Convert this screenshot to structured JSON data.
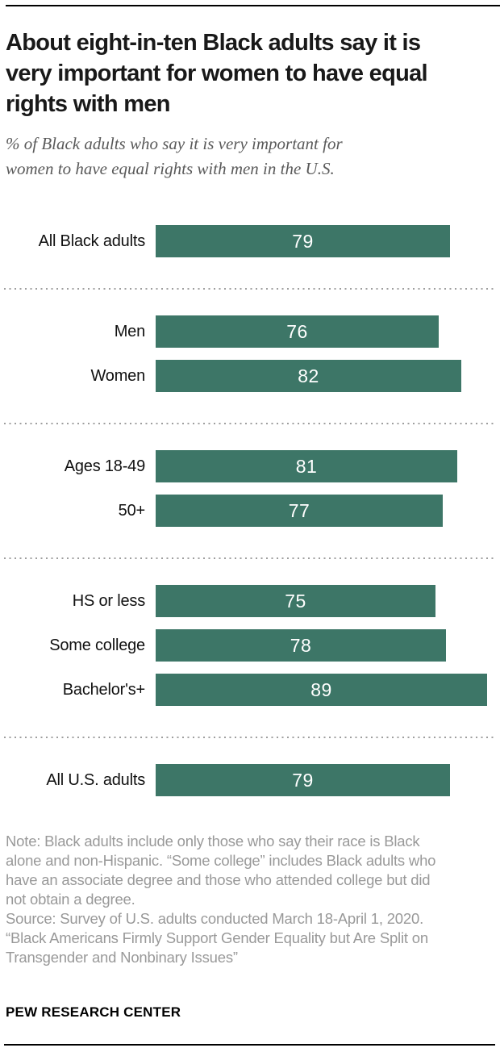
{
  "header": {
    "title_lines": [
      "About eight-in-ten Black adults say it is",
      "very important for women to have equal",
      "rights with men"
    ],
    "subtitle_lines": [
      "% of Black adults who say it is very important for",
      "women to have equal rights with men in the U.S."
    ]
  },
  "chart_data": {
    "type": "bar",
    "orientation": "horizontal",
    "title": "About eight-in-ten Black adults say it is very important for women to have equal rights with men",
    "subtitle": "% of Black adults who say it is very important for women to have equal rights with men in the U.S.",
    "unit": "%",
    "xlim": [
      0,
      92
    ],
    "bar_color": "#3d7667",
    "value_label_color": "#ffffff",
    "grid": false,
    "legend": false,
    "categories": [
      "All Black adults",
      "Men",
      "Women",
      "Ages 18-49",
      "50+",
      "HS or less",
      "Some college",
      "Bachelor's+",
      "All U.S. adults"
    ],
    "values": [
      79,
      76,
      82,
      81,
      77,
      75,
      78,
      89,
      79
    ],
    "groups": [
      {
        "rows": [
          {
            "label": "All Black adults",
            "value": 79
          }
        ]
      },
      {
        "rows": [
          {
            "label": "Men",
            "value": 76
          },
          {
            "label": "Women",
            "value": 82
          }
        ]
      },
      {
        "rows": [
          {
            "label": "Ages 18-49",
            "value": 81
          },
          {
            "label": "50+",
            "value": 77
          }
        ]
      },
      {
        "rows": [
          {
            "label": "HS or less",
            "value": 75
          },
          {
            "label": "Some college",
            "value": 78
          },
          {
            "label": "Bachelor's+",
            "value": 89
          }
        ]
      },
      {
        "rows": [
          {
            "label": "All U.S. adults",
            "value": 79
          }
        ]
      }
    ]
  },
  "footer": {
    "note_lines": [
      "Note: Black adults include only those who say their race is Black",
      "alone and non-Hispanic. “Some college” includes Black adults who",
      "have an associate degree and those who attended college but did",
      "not obtain a degree.",
      "Source: Survey of U.S. adults conducted March 18-April 1, 2020.",
      "“Black Americans Firmly Support Gender Equality but Are Split on",
      "Transgender and Nonbinary Issues”"
    ],
    "brand": "PEW RESEARCH CENTER"
  }
}
